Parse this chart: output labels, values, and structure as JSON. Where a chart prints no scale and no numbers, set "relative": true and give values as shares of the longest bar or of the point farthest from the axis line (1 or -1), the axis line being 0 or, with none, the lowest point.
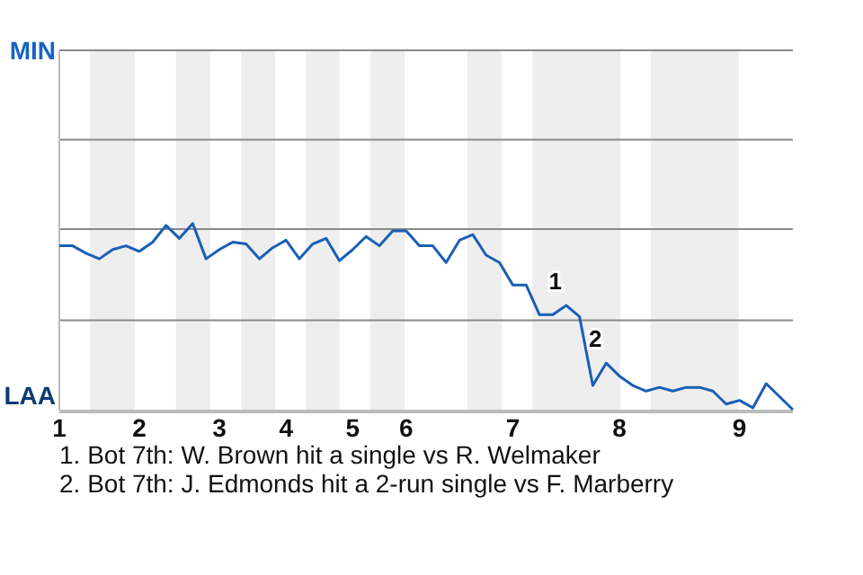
{
  "chart_data": {
    "type": "line",
    "categories": [
      "1",
      null,
      null,
      null,
      null,
      null,
      "2",
      null,
      null,
      null,
      null,
      null,
      "3",
      null,
      null,
      null,
      null,
      "4",
      null,
      null,
      null,
      null,
      "5",
      null,
      null,
      null,
      "6",
      null,
      null,
      null,
      null,
      null,
      null,
      null,
      "7",
      null,
      null,
      null,
      null,
      null,
      null,
      null,
      "8",
      null,
      null,
      null,
      null,
      null,
      null,
      null,
      null,
      "9",
      null,
      null,
      null,
      null
    ],
    "relative": true,
    "series": [
      {
        "color": "#1a5fb4",
        "values": [
          0.88,
          0.88,
          0.84,
          0.81,
          0.86,
          0.88,
          0.85,
          0.9,
          0.99,
          0.92,
          1,
          0.81,
          0.86,
          0.9,
          0.89,
          0.81,
          0.87,
          0.91,
          0.81,
          0.89,
          0.92,
          0.8,
          0.86,
          0.93,
          0.88,
          0.96,
          0.96,
          0.88,
          0.88,
          0.79,
          0.91,
          0.94,
          0.83,
          0.79,
          0.67,
          0.67,
          0.51,
          0.51,
          0.56,
          0.5,
          0.13,
          0.25,
          0.18,
          0.13,
          0.1,
          0.12,
          0.1,
          0.12,
          0.12,
          0.1,
          0.03,
          0.05,
          0.01,
          0.14,
          0.07,
          0
        ]
      }
    ],
    "ref_lines": [
      {
        "axis": "y",
        "value": 0.48,
        "color": "#888888"
      },
      {
        "axis": "y",
        "value": 0.97,
        "color": "#888888"
      },
      {
        "axis": "y",
        "value": 1.45,
        "color": "#888888"
      },
      {
        "axis": "y",
        "value": 1.93,
        "color": "#888888"
      }
    ],
    "annotations": [
      "MIN",
      "LAA",
      "1. Bot 7th: W. Brown hit a single vs R. Welmaker",
      "2. Bot 7th: J. Edmonds hit a 2-run single vs F. Marberry",
      {
        "text": "1",
        "y": 0.56
      },
      {
        "text": "2",
        "y": 0.25
      }
    ]
  }
}
